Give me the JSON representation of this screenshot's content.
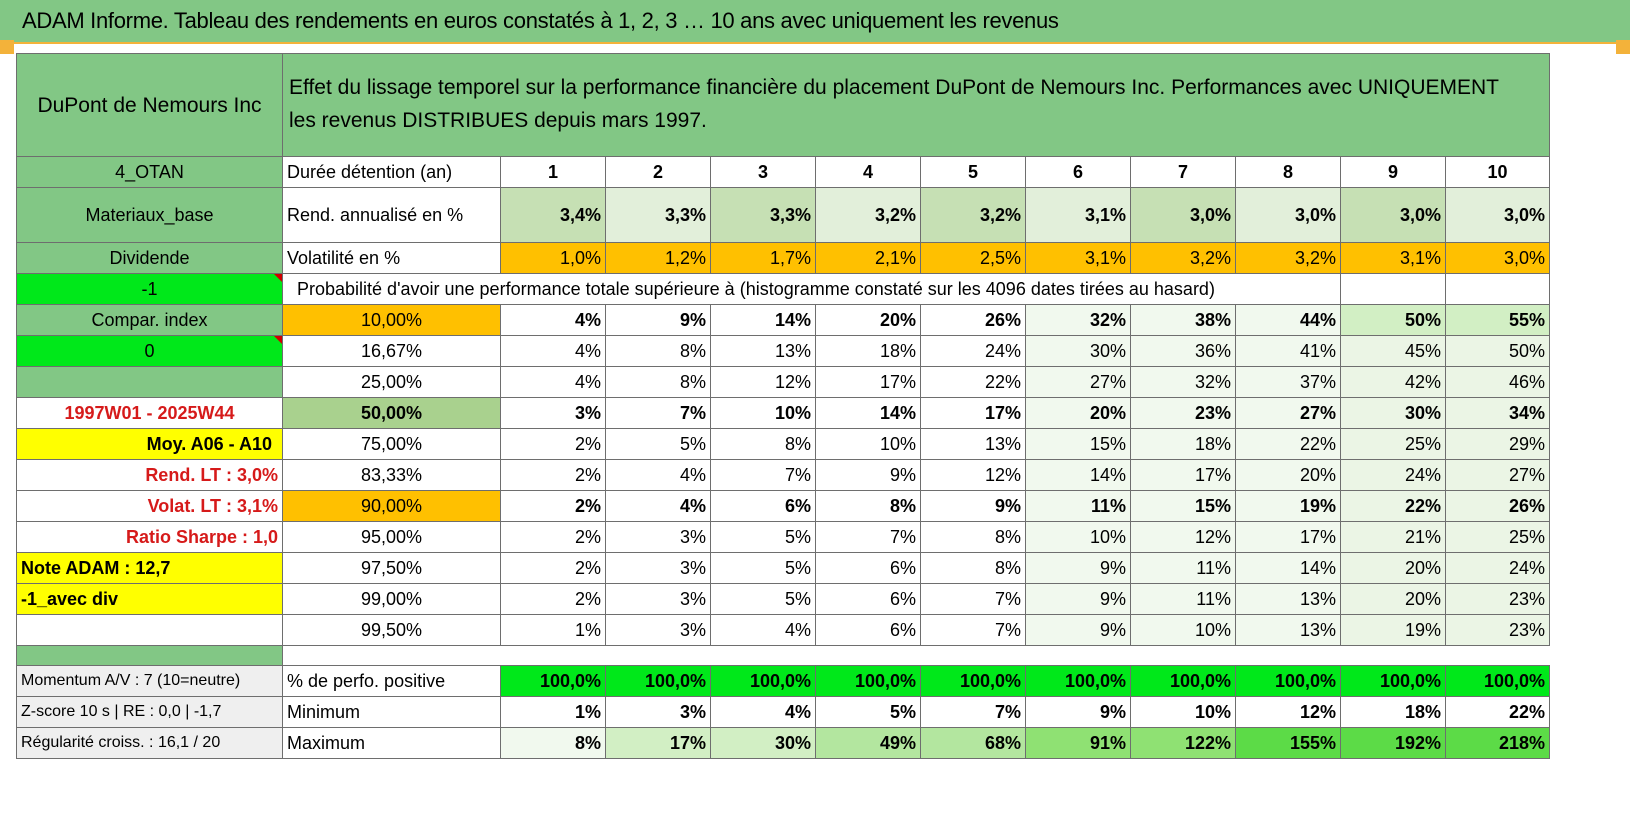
{
  "page_title": "ADAM Informe. Tableau des rendements en euros constatés à 1, 2, 3 … 10 ans avec uniquement les revenus",
  "header": {
    "company": "DuPont de Nemours Inc",
    "description_line1": "Effet du lissage temporel sur la performance financière du placement DuPont de Nemours Inc. Performances avec UNIQUEMENT",
    "description_line2": "les revenus DISTRIBUES depuis mars 1997."
  },
  "left": {
    "code": "4_OTAN",
    "sector": "Materiaux_base",
    "type": "Dividende",
    "param1": "-1",
    "compar": "Compar. index",
    "param2": "0",
    "period": "1997W01 - 2025W44",
    "moy": "Moy. A06 - A10",
    "rend_lt": "Rend. LT :   3,0%",
    "volat_lt": "Volat. LT :   3,1%",
    "sharpe": "Ratio Sharpe :   1,0",
    "note": "Note ADAM : 12,7",
    "avec_div": "-1_avec div"
  },
  "labels": {
    "duree": "Durée détention (an)",
    "rend": "Rend. annualisé en %",
    "vol": "Volatilité en %",
    "proba": "Probabilité d'avoir une performance totale supérieure à (histogramme constaté sur les 4096 dates tirées au hasard)",
    "pos": "% de perfo. positive",
    "min": "Minimum",
    "max": "Maximum"
  },
  "footer_left": {
    "momentum": "Momentum A/V : 7 (10=neutre)",
    "zscore": "Z-score 10 s | RE : 0,0 | -1,7",
    "regularite": "Régularité croiss. : 16,1 / 20"
  },
  "years": [
    "1",
    "2",
    "3",
    "4",
    "5",
    "6",
    "7",
    "8",
    "9",
    "10"
  ],
  "rend": [
    "3,4%",
    "3,3%",
    "3,3%",
    "3,2%",
    "3,2%",
    "3,1%",
    "3,0%",
    "3,0%",
    "3,0%",
    "3,0%"
  ],
  "vol": [
    "1,0%",
    "1,2%",
    "1,7%",
    "2,1%",
    "2,5%",
    "3,1%",
    "3,2%",
    "3,2%",
    "3,1%",
    "3,0%"
  ],
  "proba_rows": [
    {
      "pct": "10,00%",
      "vals": [
        "4%",
        "9%",
        "14%",
        "20%",
        "26%",
        "32%",
        "38%",
        "44%",
        "50%",
        "55%"
      ]
    },
    {
      "pct": "16,67%",
      "vals": [
        "4%",
        "8%",
        "13%",
        "18%",
        "24%",
        "30%",
        "36%",
        "41%",
        "45%",
        "50%"
      ]
    },
    {
      "pct": "25,00%",
      "vals": [
        "4%",
        "8%",
        "12%",
        "17%",
        "22%",
        "27%",
        "32%",
        "37%",
        "42%",
        "46%"
      ]
    },
    {
      "pct": "50,00%",
      "vals": [
        "3%",
        "7%",
        "10%",
        "14%",
        "17%",
        "20%",
        "23%",
        "27%",
        "30%",
        "34%"
      ]
    },
    {
      "pct": "75,00%",
      "vals": [
        "2%",
        "5%",
        "8%",
        "10%",
        "13%",
        "15%",
        "18%",
        "22%",
        "25%",
        "29%"
      ]
    },
    {
      "pct": "83,33%",
      "vals": [
        "2%",
        "4%",
        "7%",
        "9%",
        "12%",
        "14%",
        "17%",
        "20%",
        "24%",
        "27%"
      ]
    },
    {
      "pct": "90,00%",
      "vals": [
        "2%",
        "4%",
        "6%",
        "8%",
        "9%",
        "11%",
        "15%",
        "19%",
        "22%",
        "26%"
      ]
    },
    {
      "pct": "95,00%",
      "vals": [
        "2%",
        "3%",
        "5%",
        "7%",
        "8%",
        "10%",
        "12%",
        "17%",
        "21%",
        "25%"
      ]
    },
    {
      "pct": "97,50%",
      "vals": [
        "2%",
        "3%",
        "5%",
        "6%",
        "8%",
        "9%",
        "11%",
        "14%",
        "20%",
        "24%"
      ]
    },
    {
      "pct": "99,00%",
      "vals": [
        "2%",
        "3%",
        "5%",
        "6%",
        "7%",
        "9%",
        "11%",
        "13%",
        "20%",
        "23%"
      ]
    },
    {
      "pct": "99,50%",
      "vals": [
        "1%",
        "3%",
        "4%",
        "6%",
        "7%",
        "9%",
        "10%",
        "13%",
        "19%",
        "23%"
      ]
    }
  ],
  "pos": [
    "100,0%",
    "100,0%",
    "100,0%",
    "100,0%",
    "100,0%",
    "100,0%",
    "100,0%",
    "100,0%",
    "100,0%",
    "100,0%"
  ],
  "min": [
    "1%",
    "3%",
    "4%",
    "5%",
    "7%",
    "9%",
    "10%",
    "12%",
    "18%",
    "22%"
  ],
  "max": [
    "8%",
    "17%",
    "30%",
    "49%",
    "68%",
    "91%",
    "122%",
    "155%",
    "192%",
    "218%"
  ]
}
